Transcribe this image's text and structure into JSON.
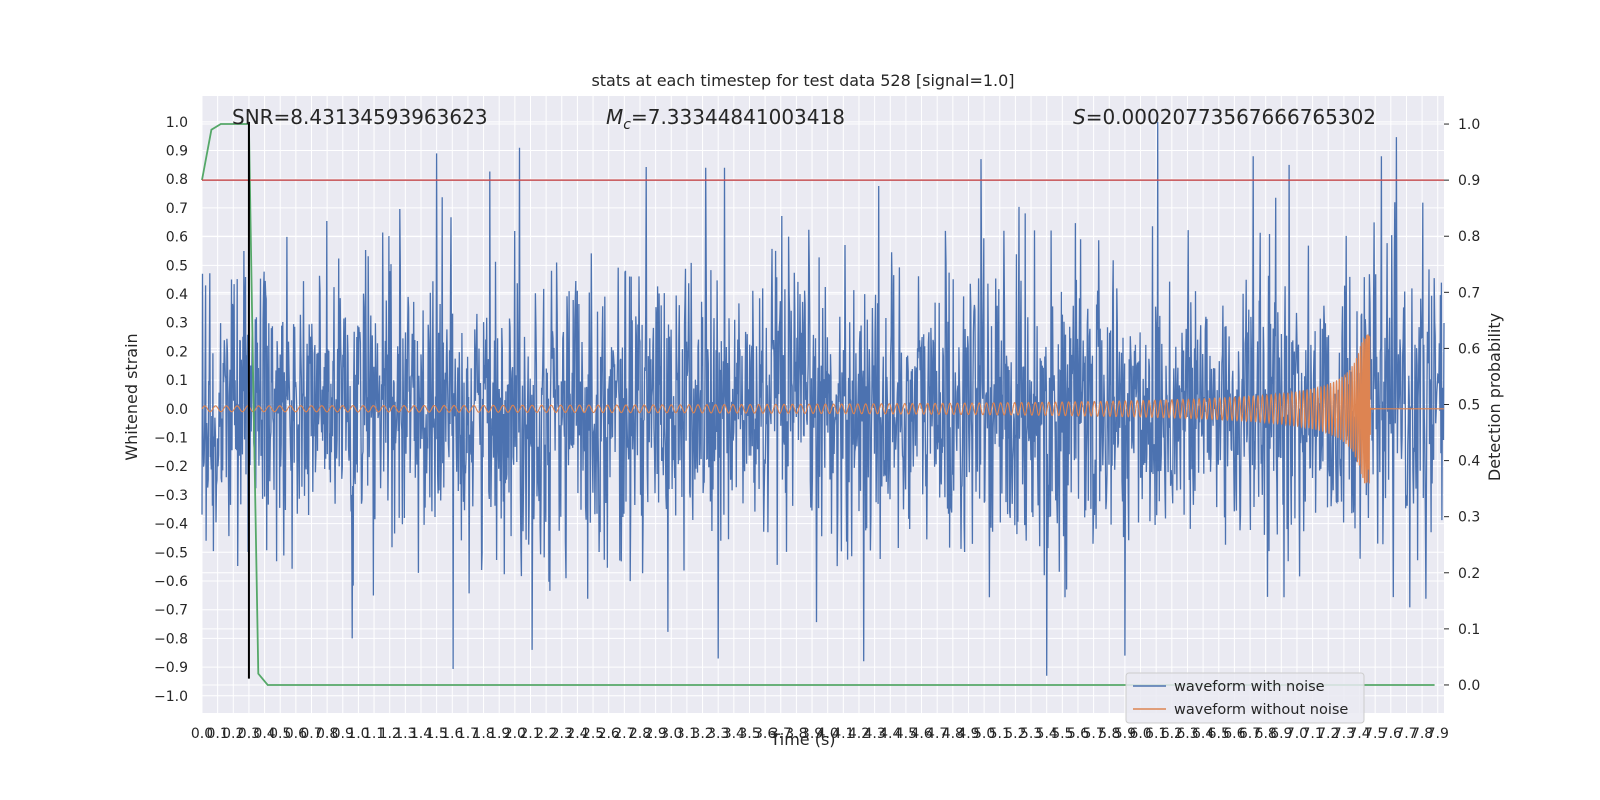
{
  "chart_data": {
    "type": "line",
    "title": "stats at each timestep for test data 528 [signal=1.0]",
    "xlabel": "Time (s)",
    "ylabel": "Whitened strain",
    "y2label": "Detection probability",
    "xlim": [
      0.0,
      7.94
    ],
    "ylim": [
      -1.06,
      1.09
    ],
    "y2lim": [
      -0.05,
      1.05
    ],
    "x_ticks": [
      "0.0",
      "0.1",
      "0.2",
      "0.3",
      "0.4",
      "0.5",
      "0.6",
      "0.7",
      "0.8",
      "0.9",
      "1.0",
      "1.1",
      "1.2",
      "1.3",
      "1.4",
      "1.5",
      "1.6",
      "1.7",
      "1.8",
      "1.9",
      "2.0",
      "2.1",
      "2.2",
      "2.3",
      "2.4",
      "2.5",
      "2.6",
      "2.7",
      "2.8",
      "2.9",
      "3.0",
      "3.1",
      "3.2",
      "3.3",
      "3.4",
      "3.5",
      "3.6",
      "3.7",
      "3.8",
      "3.9",
      "4.0",
      "4.1",
      "4.2",
      "4.3",
      "4.4",
      "4.5",
      "4.6",
      "4.7",
      "4.8",
      "4.9",
      "5.0",
      "5.1",
      "5.2",
      "5.3",
      "5.4",
      "5.5",
      "5.6",
      "5.7",
      "5.8",
      "5.9",
      "6.0",
      "6.1",
      "6.2",
      "6.3",
      "6.4",
      "6.5",
      "6.6",
      "6.7",
      "6.8",
      "6.9",
      "7.0",
      "7.1",
      "7.2",
      "7.3",
      "7.4",
      "7.5",
      "7.6",
      "7.7",
      "7.8",
      "7.9"
    ],
    "y_ticks": [
      "1.0",
      "0.9",
      "0.8",
      "0.7",
      "0.6",
      "0.5",
      "0.4",
      "0.3",
      "0.2",
      "0.1",
      "0.0",
      "−0.1",
      "−0.2",
      "−0.3",
      "−0.4",
      "−0.5",
      "−0.6",
      "−0.7",
      "−0.8",
      "−0.9",
      "−1.0"
    ],
    "y2_ticks": [
      "1.0",
      "0.9",
      "0.8",
      "0.7",
      "0.6",
      "0.5",
      "0.4",
      "0.3",
      "0.2",
      "0.1",
      "0.0"
    ],
    "grid": true,
    "legend_position": "lower-right",
    "annotations": {
      "snr": "SNR=8.43134593963623",
      "mc_symbol": "M",
      "mc_sub": "c",
      "mc_value": "=7.33344841003418",
      "s_symbol": "S",
      "s_value": "=0.00020773567666765302"
    },
    "series": [
      {
        "name": "waveform with noise",
        "axis": "left",
        "color": "#4c72b0",
        "description_of_shape": "dense noise between about -0.55 and 0.6 with peaks near 0.9",
        "amplitude_typical": 0.45,
        "peaks": [
          {
            "x": 1.5,
            "y": 0.89
          },
          {
            "x": 2.03,
            "y": 0.91
          },
          {
            "x": 3.22,
            "y": 0.84
          },
          {
            "x": 3.34,
            "y": 0.84
          },
          {
            "x": 4.98,
            "y": 0.87
          },
          {
            "x": 6.11,
            "y": 1.0
          },
          {
            "x": 6.72,
            "y": 0.88
          },
          {
            "x": 6.95,
            "y": 0.85
          },
          {
            "x": 7.54,
            "y": 0.88
          },
          {
            "x": 0.96,
            "y": -0.8
          },
          {
            "x": 2.11,
            "y": -0.84
          },
          {
            "x": 3.3,
            "y": -0.87
          },
          {
            "x": 4.23,
            "y": -0.88
          },
          {
            "x": 5.4,
            "y": -0.93
          },
          {
            "x": 5.9,
            "y": -0.86
          }
        ]
      },
      {
        "name": "waveform without noise",
        "axis": "left",
        "color": "#dd8452",
        "description_of_shape": "chirp whose amplitude and frequency grow until merger near t=7.47 s",
        "start_amplitude": 0.01,
        "peak_amplitude": 0.26,
        "merger_time": 7.47
      },
      {
        "axis": "right",
        "color": "#55a868",
        "x": [
          0.0,
          0.06,
          0.12,
          0.3,
          0.33,
          0.36,
          0.42,
          7.88
        ],
        "y": [
          0.9,
          0.99,
          1.0,
          1.0,
          0.5,
          0.02,
          0.0,
          0.0
        ]
      },
      {
        "axis": "right",
        "color": "#c44e52",
        "type": "hline",
        "y": 0.9
      },
      {
        "axis": "left",
        "color": "#000000",
        "type": "vline",
        "x": 0.3
      }
    ]
  }
}
